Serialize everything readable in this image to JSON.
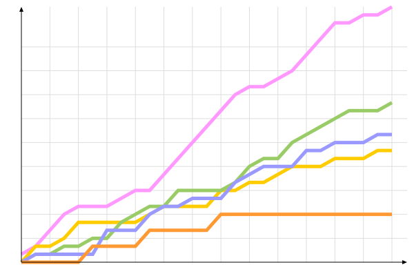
{
  "chart_data": {
    "type": "line",
    "title": "",
    "xlabel": "",
    "ylabel": "",
    "x": [
      0,
      1,
      2,
      3,
      4,
      5,
      6,
      7,
      8,
      9,
      10,
      11,
      12,
      13,
      14,
      15,
      16,
      17,
      18,
      19,
      20,
      21,
      22,
      23,
      24,
      25,
      26
    ],
    "xlim": [
      0,
      26
    ],
    "ylim": [
      0,
      32
    ],
    "grid": true,
    "x_grid_step": 2,
    "y_grid_step": 3,
    "legend": "none",
    "series": [
      {
        "color": "#ff99ff",
        "values": [
          1,
          2,
          4,
          6,
          7,
          7,
          7,
          8,
          9,
          9,
          11,
          13,
          15,
          17,
          19,
          21,
          22,
          22,
          23,
          24,
          26,
          28,
          30,
          30,
          31,
          31,
          32
        ]
      },
      {
        "color": "#ffcc00",
        "values": [
          0,
          2,
          2,
          3,
          5,
          5,
          5,
          5,
          5,
          6,
          7,
          7,
          7,
          7,
          9,
          9,
          10,
          10,
          11,
          12,
          12,
          12,
          13,
          13,
          13,
          14,
          14
        ]
      },
      {
        "color": "#99cc66",
        "values": [
          0,
          1,
          1,
          2,
          2,
          3,
          3,
          5,
          6,
          7,
          7,
          9,
          9,
          9,
          9,
          10,
          12,
          13,
          13,
          15,
          16,
          17,
          18,
          19,
          19,
          19,
          20
        ]
      },
      {
        "color": "#9999ff",
        "values": [
          0,
          1,
          1,
          1,
          1,
          1,
          4,
          4,
          4,
          6,
          7,
          7,
          8,
          8,
          8,
          10,
          11,
          12,
          12,
          12,
          14,
          14,
          15,
          15,
          15,
          16,
          16
        ]
      },
      {
        "color": "#ff9933",
        "values": [
          0,
          0,
          0,
          0,
          0,
          2,
          2,
          2,
          2,
          4,
          4,
          4,
          4,
          4,
          6,
          6,
          6,
          6,
          6,
          6,
          6,
          6,
          6,
          6,
          6,
          6,
          6
        ]
      }
    ]
  }
}
